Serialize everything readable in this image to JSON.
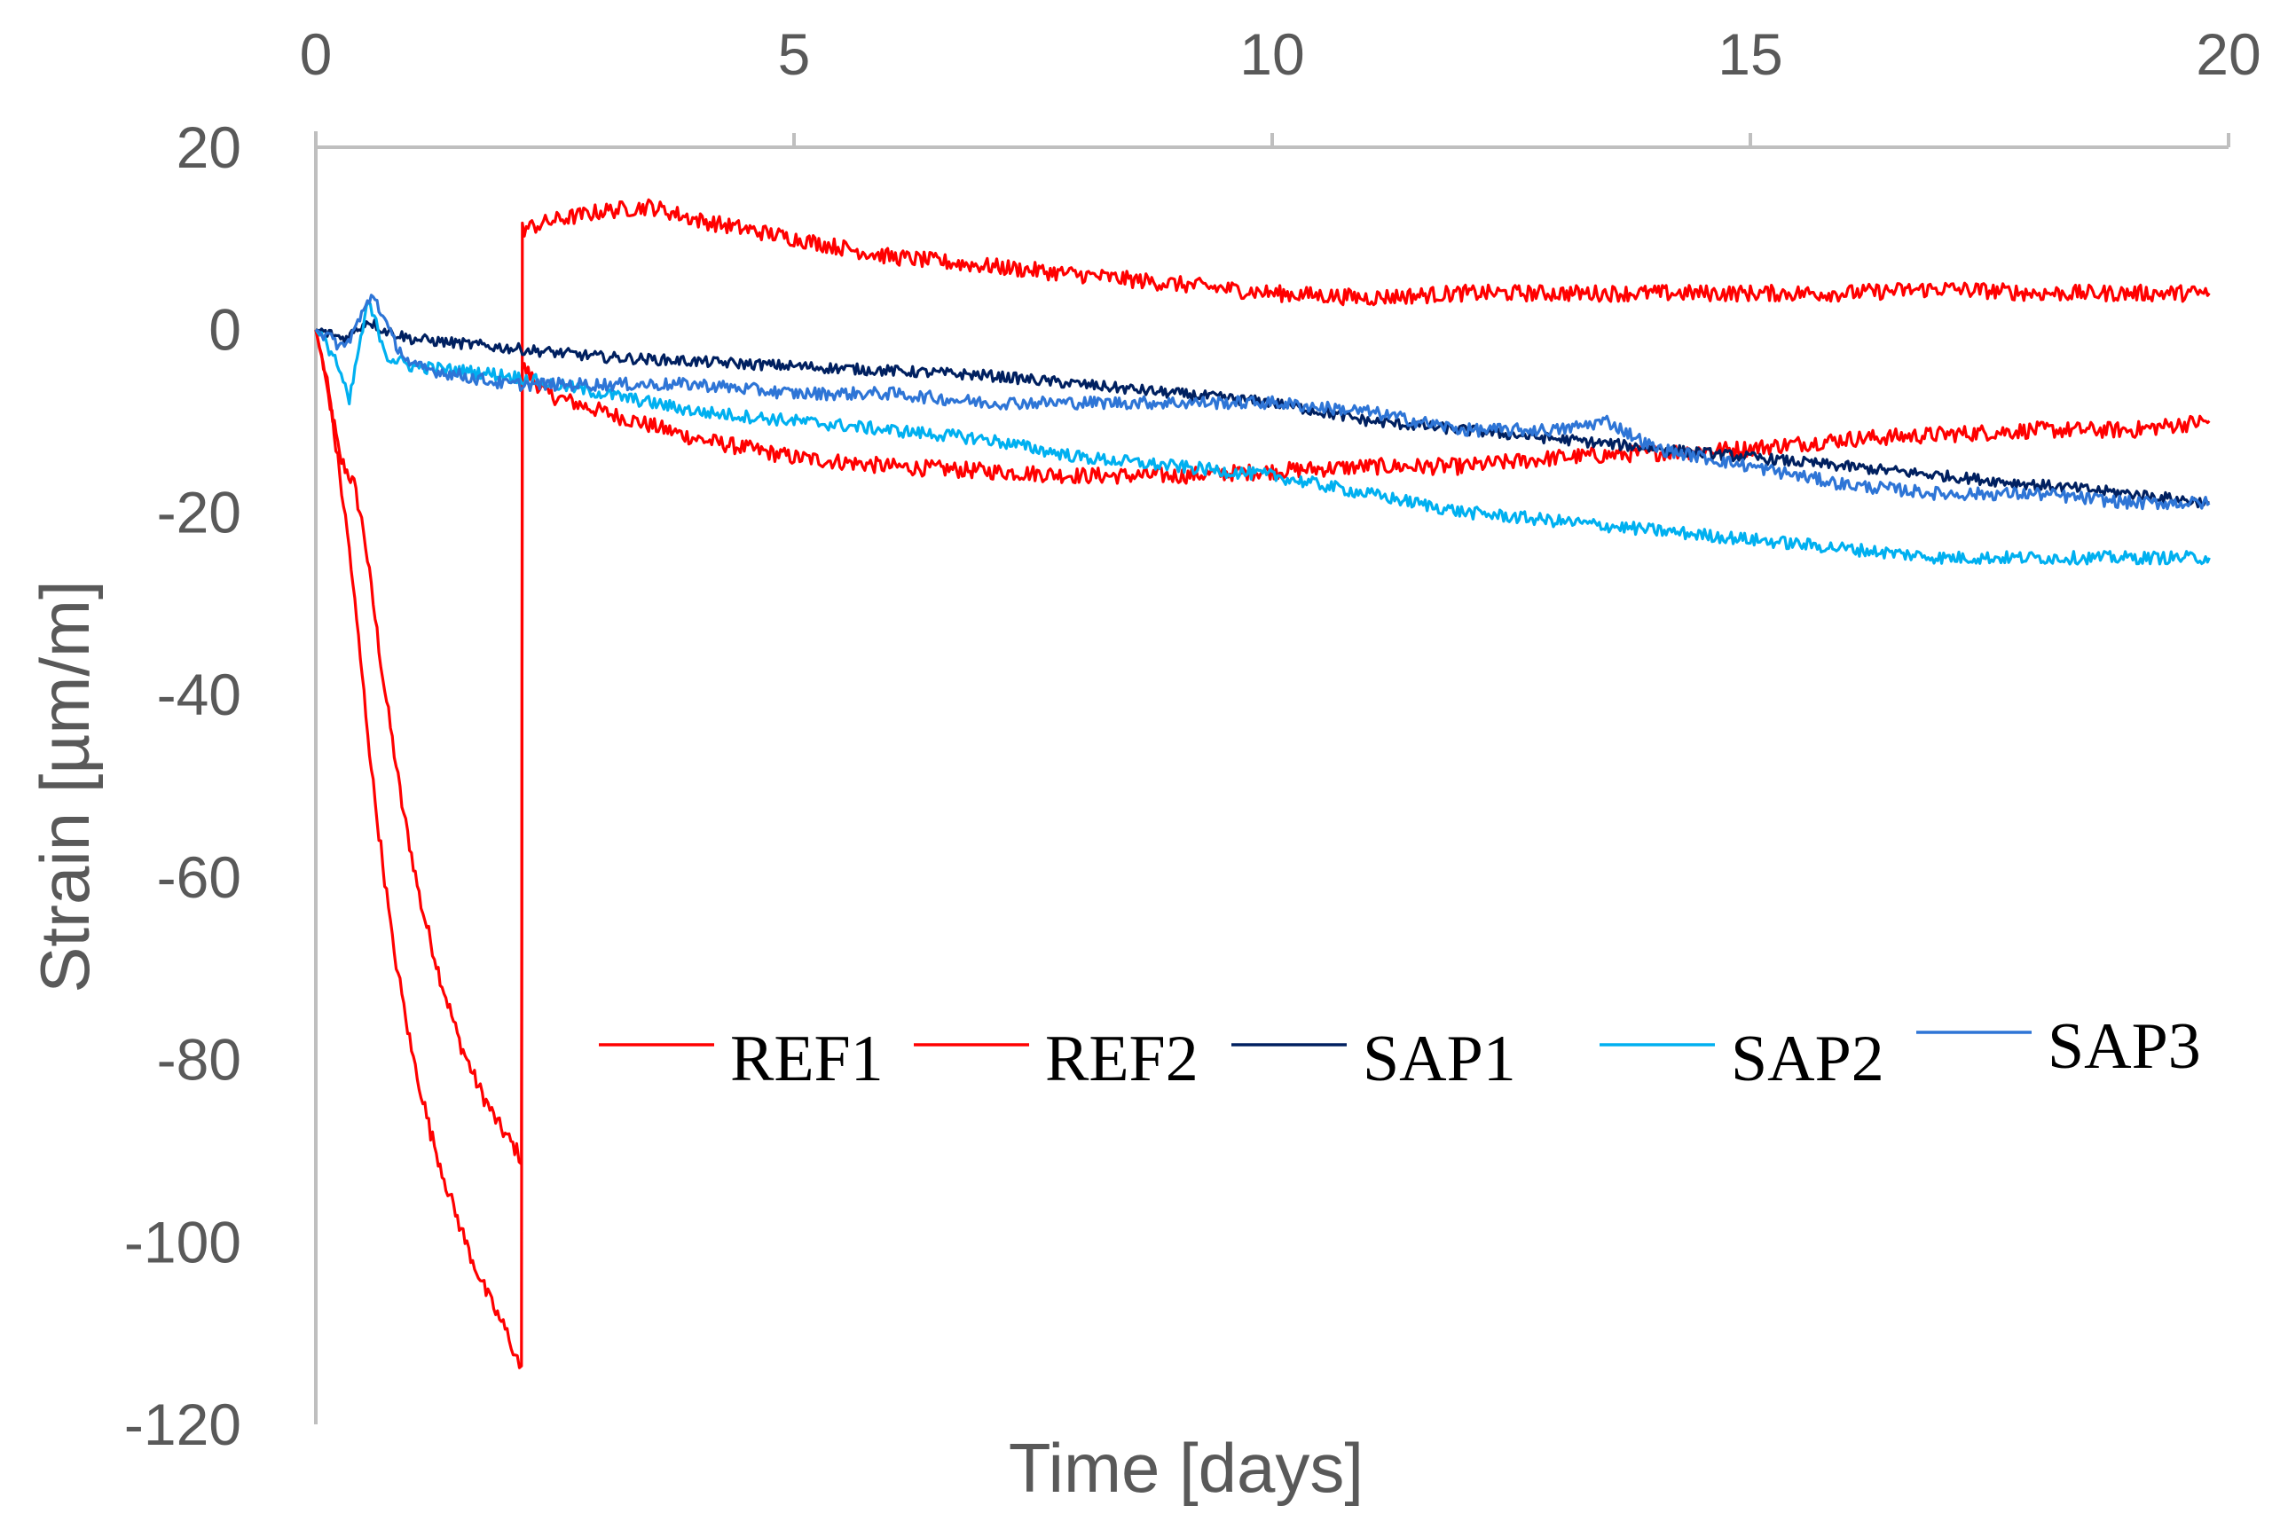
{
  "chart_data": {
    "type": "line",
    "title": "",
    "xlabel": "Time [days]",
    "ylabel": "Strain [µm/m]",
    "xlim": [
      0,
      20
    ],
    "ylim": [
      -120,
      20
    ],
    "xticks": [
      "0",
      "5",
      "10",
      "15",
      "20"
    ],
    "yticks": [
      "20",
      "0",
      "-20",
      "-40",
      "-60",
      "-80",
      "-100",
      "-120"
    ],
    "x_axis_position": "top",
    "grid": false,
    "legend_position": "center-right",
    "series": [
      {
        "name": "REF1",
        "color": "#FF0000",
        "noise": 0.9,
        "points": [
          [
            0,
            0
          ],
          [
            0.1,
            -5
          ],
          [
            0.25,
            -14
          ],
          [
            0.4,
            -17
          ],
          [
            0.5,
            -22
          ],
          [
            0.7,
            -38
          ],
          [
            0.9,
            -52
          ],
          [
            1.1,
            -63
          ],
          [
            1.3,
            -71
          ],
          [
            1.5,
            -78
          ],
          [
            1.7,
            -83
          ],
          [
            1.9,
            -87
          ],
          [
            2.1,
            -90
          ],
          [
            2.15,
            -91
          ],
          [
            2.16,
            -4
          ],
          [
            2.4,
            -7
          ],
          [
            3,
            -9
          ],
          [
            4,
            -12
          ],
          [
            5,
            -14
          ],
          [
            6,
            -15
          ],
          [
            7,
            -15.5
          ],
          [
            8,
            -16
          ],
          [
            9,
            -16
          ],
          [
            10,
            -15.5
          ],
          [
            11,
            -15
          ],
          [
            12,
            -15
          ],
          [
            13,
            -14
          ],
          [
            14,
            -13.5
          ],
          [
            15,
            -13
          ],
          [
            16,
            -12
          ],
          [
            17,
            -11.5
          ],
          [
            18,
            -11
          ],
          [
            19,
            -11
          ],
          [
            19.8,
            -10
          ]
        ]
      },
      {
        "name": "REF2",
        "color": "#FF0000",
        "noise": 0.9,
        "points": [
          [
            0,
            0
          ],
          [
            0.15,
            -8
          ],
          [
            0.35,
            -24
          ],
          [
            0.6,
            -50
          ],
          [
            0.8,
            -67
          ],
          [
            1.0,
            -79
          ],
          [
            1.2,
            -88
          ],
          [
            1.4,
            -95
          ],
          [
            1.6,
            -101
          ],
          [
            1.8,
            -106
          ],
          [
            2.0,
            -110
          ],
          [
            2.15,
            -114
          ],
          [
            2.16,
            11
          ],
          [
            2.5,
            12
          ],
          [
            3,
            13
          ],
          [
            3.5,
            13.5
          ],
          [
            4,
            12
          ],
          [
            5,
            10
          ],
          [
            6,
            8
          ],
          [
            7,
            7
          ],
          [
            8,
            6
          ],
          [
            9,
            5
          ],
          [
            10,
            4
          ],
          [
            11,
            3.5
          ],
          [
            12,
            4
          ],
          [
            13,
            4
          ],
          [
            14,
            4
          ],
          [
            15,
            4
          ],
          [
            16,
            4
          ],
          [
            17,
            4.5
          ],
          [
            18,
            4
          ],
          [
            19,
            4
          ],
          [
            19.8,
            4
          ]
        ]
      },
      {
        "name": "SAP1",
        "color": "#002060",
        "noise": 0.6,
        "points": [
          [
            0,
            0
          ],
          [
            0.3,
            -1
          ],
          [
            0.55,
            1
          ],
          [
            0.7,
            0
          ],
          [
            1,
            -1
          ],
          [
            2,
            -2
          ],
          [
            3,
            -3
          ],
          [
            4,
            -3.5
          ],
          [
            5,
            -4
          ],
          [
            6,
            -4.5
          ],
          [
            7,
            -5
          ],
          [
            8,
            -6
          ],
          [
            9,
            -7
          ],
          [
            10,
            -8
          ],
          [
            11,
            -10
          ],
          [
            12,
            -11
          ],
          [
            13,
            -12
          ],
          [
            14,
            -13
          ],
          [
            15,
            -14
          ],
          [
            16,
            -15
          ],
          [
            17,
            -16
          ],
          [
            18,
            -17
          ],
          [
            19,
            -18
          ],
          [
            19.8,
            -19
          ]
        ]
      },
      {
        "name": "SAP2",
        "color": "#00B0F0",
        "noise": 0.7,
        "points": [
          [
            0,
            0
          ],
          [
            0.2,
            -3
          ],
          [
            0.35,
            -8
          ],
          [
            0.45,
            -2
          ],
          [
            0.55,
            3
          ],
          [
            0.75,
            -3
          ],
          [
            1,
            -4
          ],
          [
            2,
            -5
          ],
          [
            3,
            -7
          ],
          [
            4,
            -9
          ],
          [
            5,
            -10
          ],
          [
            6,
            -11
          ],
          [
            7,
            -12
          ],
          [
            8,
            -14
          ],
          [
            9,
            -15
          ],
          [
            10,
            -16
          ],
          [
            11,
            -18
          ],
          [
            12,
            -20
          ],
          [
            13,
            -21
          ],
          [
            14,
            -22
          ],
          [
            15,
            -23
          ],
          [
            16,
            -24
          ],
          [
            17,
            -25
          ],
          [
            18,
            -25
          ],
          [
            19,
            -25
          ],
          [
            19.8,
            -25
          ]
        ]
      },
      {
        "name": "SAP3",
        "color": "#2E75D6",
        "noise": 0.7,
        "points": [
          [
            0,
            0
          ],
          [
            0.3,
            -2
          ],
          [
            0.5,
            2
          ],
          [
            0.6,
            4
          ],
          [
            0.8,
            -1
          ],
          [
            1,
            -4
          ],
          [
            2,
            -6
          ],
          [
            3,
            -6
          ],
          [
            4,
            -6
          ],
          [
            5,
            -7
          ],
          [
            6,
            -7
          ],
          [
            7,
            -8
          ],
          [
            8,
            -8
          ],
          [
            9,
            -8
          ],
          [
            10,
            -8
          ],
          [
            11,
            -9
          ],
          [
            12,
            -11
          ],
          [
            13,
            -11
          ],
          [
            13.5,
            -10
          ],
          [
            14,
            -13
          ],
          [
            15,
            -15
          ],
          [
            16,
            -17
          ],
          [
            17,
            -18
          ],
          [
            18,
            -18
          ],
          [
            19,
            -19
          ],
          [
            19.8,
            -19
          ]
        ]
      }
    ]
  }
}
